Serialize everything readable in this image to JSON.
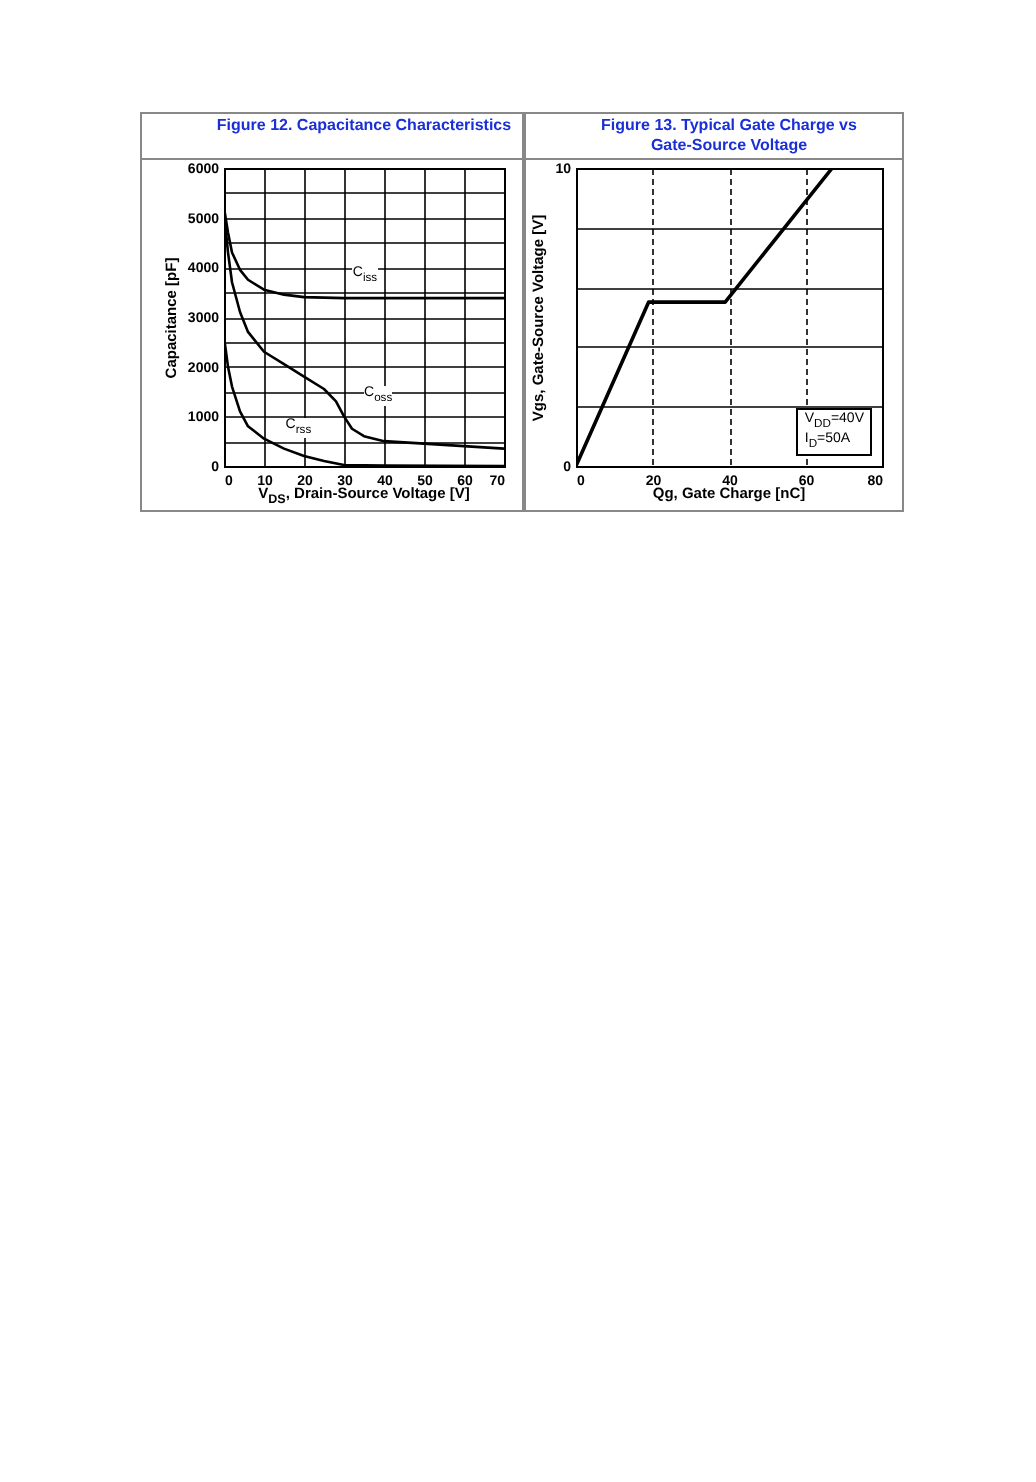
{
  "chart_data": [
    {
      "type": "line",
      "title": "Figure 12. Capacitance Characteristics",
      "xlabel": "V$_{DS}$, Drain-Source Voltage [V]",
      "ylabel": "Capacitance [pF]",
      "series": [
        {
          "name": "C$_{iss}$",
          "color": "#000000",
          "x": [
            0,
            1,
            2,
            4,
            6,
            10,
            15,
            20,
            30,
            50,
            70
          ],
          "values": [
            5200,
            4700,
            4300,
            3950,
            3750,
            3550,
            3450,
            3400,
            3380,
            3380,
            3380
          ]
        },
        {
          "name": "C$_{oss}$",
          "color": "#000000",
          "x": [
            0,
            1,
            2,
            4,
            6,
            10,
            15,
            20,
            25,
            28,
            30,
            32,
            35,
            40,
            50,
            60,
            70
          ],
          "values": [
            5100,
            4300,
            3700,
            3100,
            2700,
            2300,
            2050,
            1800,
            1550,
            1300,
            1000,
            750,
            600,
            500,
            450,
            400,
            350
          ]
        },
        {
          "name": "C$_{rss}$",
          "color": "#000000",
          "x": [
            0,
            1,
            2,
            4,
            6,
            10,
            15,
            20,
            25,
            30,
            40,
            70
          ],
          "values": [
            2600,
            2000,
            1600,
            1100,
            800,
            550,
            350,
            200,
            100,
            20,
            10,
            0
          ]
        }
      ],
      "xlim": [
        0,
        70
      ],
      "xticks": [
        0,
        10,
        20,
        30,
        40,
        50,
        60,
        70
      ],
      "ylim": [
        0,
        6000
      ],
      "yticks": [
        0,
        {
          "value": 500,
          "label": null
        },
        1000,
        {
          "value": 1500,
          "label": null
        },
        2000,
        {
          "value": 2500,
          "label": null
        },
        3000,
        {
          "value": 3500,
          "label": null
        },
        4000,
        {
          "value": 4500,
          "label": null
        },
        5000,
        {
          "value": 5500,
          "label": null
        },
        6000
      ],
      "grid": true
    },
    {
      "type": "line",
      "title": "Figure 13. Typical Gate Charge vs Gate-Source Voltage",
      "xlabel": "Qg, Gate Charge [nC]",
      "ylabel": "Vgs, Gate-Source Voltage [V]",
      "annotations": [
        "V$_{DD}$=40V",
        "I$_{D}$=50A"
      ],
      "series": [
        {
          "color": "#000000",
          "x": [
            0,
            19,
            39,
            67
          ],
          "values": [
            0,
            5.5,
            5.5,
            10
          ]
        }
      ],
      "xlim": [
        0,
        80
      ],
      "xticks": [
        0,
        20,
        40,
        60,
        80
      ],
      "ylim": [
        0,
        10
      ],
      "yticks": [
        0,
        {
          "value": 2,
          "label": null
        },
        {
          "value": 4,
          "label": null
        },
        {
          "value": 6,
          "label": null
        },
        {
          "value": 8,
          "label": null
        },
        10
      ],
      "grid": true
    }
  ]
}
